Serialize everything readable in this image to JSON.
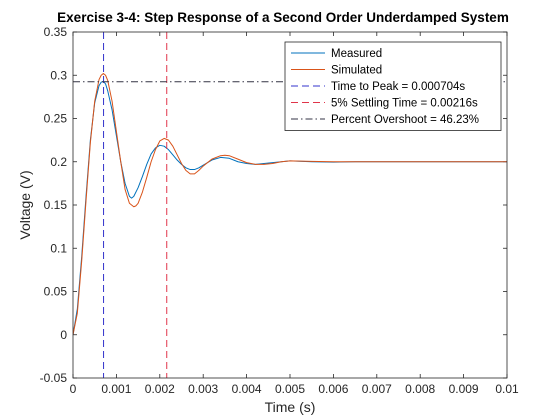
{
  "chart_data": {
    "type": "line",
    "title": "Exercise 3-4: Step Response of a Second Order Underdamped System",
    "xlabel": "Time (s)",
    "ylabel": "Voltage (V)",
    "xlim": [
      0,
      0.01
    ],
    "ylim": [
      -0.05,
      0.35
    ],
    "xticks": [
      0,
      0.001,
      0.002,
      0.003,
      0.004,
      0.005,
      0.006,
      0.007,
      0.008,
      0.009,
      0.01
    ],
    "xtick_labels": [
      "0",
      "0.001",
      "0.002",
      "0.003",
      "0.004",
      "0.005",
      "0.006",
      "0.007",
      "0.008",
      "0.009",
      "0.01"
    ],
    "yticks": [
      -0.05,
      0,
      0.05,
      0.1,
      0.15,
      0.2,
      0.25,
      0.3,
      0.35
    ],
    "ytick_labels": [
      "-0.05",
      "0",
      "0.05",
      "0.1",
      "0.15",
      "0.2",
      "0.25",
      "0.3",
      "0.35"
    ],
    "grid": false,
    "legend_position": "top-right",
    "series": [
      {
        "name": "Measured",
        "color": "#0072BD",
        "x": [
          0,
          0.0001,
          0.0002,
          0.0003,
          0.0004,
          0.0005,
          0.0006,
          0.00065,
          0.0007,
          0.00075,
          0.0008,
          0.0009,
          0.001,
          0.0011,
          0.0012,
          0.0013,
          0.00135,
          0.0014,
          0.0015,
          0.0016,
          0.0017,
          0.0018,
          0.0019,
          0.002,
          0.0021,
          0.0022,
          0.0023,
          0.0024,
          0.0025,
          0.0026,
          0.0027,
          0.0028,
          0.0029,
          0.003,
          0.0032,
          0.0034,
          0.0036,
          0.0038,
          0.004,
          0.0042,
          0.0044,
          0.0046,
          0.0048,
          0.005,
          0.0055,
          0.006,
          0.0065,
          0.007,
          0.0075,
          0.008,
          0.0085,
          0.009,
          0.0095,
          0.01
        ],
        "y": [
          0,
          0.03,
          0.09,
          0.16,
          0.225,
          0.268,
          0.288,
          0.292,
          0.293,
          0.29,
          0.282,
          0.26,
          0.23,
          0.2,
          0.175,
          0.16,
          0.158,
          0.16,
          0.17,
          0.183,
          0.197,
          0.209,
          0.216,
          0.219,
          0.218,
          0.214,
          0.208,
          0.202,
          0.197,
          0.193,
          0.191,
          0.191,
          0.193,
          0.196,
          0.202,
          0.205,
          0.204,
          0.2,
          0.198,
          0.197,
          0.198,
          0.199,
          0.2,
          0.201,
          0.2,
          0.1995,
          0.2,
          0.2,
          0.2,
          0.2,
          0.2,
          0.2,
          0.2,
          0.2
        ]
      },
      {
        "name": "Simulated",
        "color": "#D95319",
        "x": [
          0,
          0.0001,
          0.0002,
          0.0003,
          0.0004,
          0.0005,
          0.0006,
          0.00065,
          0.0007,
          0.00075,
          0.0008,
          0.0009,
          0.001,
          0.0011,
          0.0012,
          0.0013,
          0.0014,
          0.00145,
          0.0015,
          0.0016,
          0.0017,
          0.0018,
          0.0019,
          0.002,
          0.0021,
          0.0022,
          0.0023,
          0.0024,
          0.0025,
          0.0026,
          0.0027,
          0.0028,
          0.0029,
          0.003,
          0.0032,
          0.0034,
          0.0035,
          0.0036,
          0.0038,
          0.004,
          0.0042,
          0.0044,
          0.0046,
          0.0048,
          0.005,
          0.0055,
          0.006,
          0.0065,
          0.007,
          0.0075,
          0.008,
          0.0085,
          0.009,
          0.0095,
          0.01
        ],
        "y": [
          0,
          0.025,
          0.085,
          0.155,
          0.222,
          0.27,
          0.295,
          0.3,
          0.302,
          0.3,
          0.294,
          0.27,
          0.235,
          0.2,
          0.168,
          0.152,
          0.148,
          0.149,
          0.152,
          0.165,
          0.182,
          0.2,
          0.214,
          0.224,
          0.227,
          0.225,
          0.218,
          0.208,
          0.198,
          0.19,
          0.186,
          0.186,
          0.19,
          0.195,
          0.203,
          0.207,
          0.2075,
          0.207,
          0.203,
          0.199,
          0.197,
          0.197,
          0.198,
          0.2,
          0.201,
          0.2005,
          0.2,
          0.2,
          0.2,
          0.2,
          0.2,
          0.2,
          0.2,
          0.2,
          0.2
        ]
      }
    ],
    "reference_lines": [
      {
        "name": "Time to Peak = 0.000704s",
        "orientation": "vertical",
        "value": 0.000704,
        "color": "#3333CC",
        "style": "dashed"
      },
      {
        "name": "5% Settling Time = 0.00216s",
        "orientation": "vertical",
        "value": 0.00216,
        "color": "#E0344A",
        "style": "dashed"
      },
      {
        "name": "Percent Overshoot = 46.23%",
        "orientation": "horizontal",
        "value": 0.2925,
        "color": "#333344",
        "style": "dashdot"
      }
    ]
  }
}
